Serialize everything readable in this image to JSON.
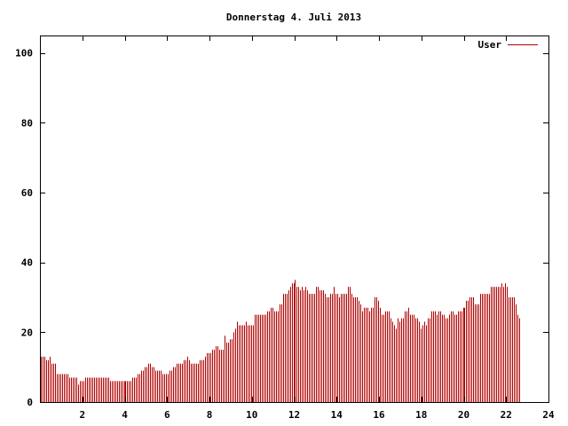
{
  "chart_data": {
    "type": "bar",
    "title": "Donnerstag 4. Juli 2013",
    "xlabel": "",
    "ylabel": "",
    "xlim": [
      0,
      24
    ],
    "ylim": [
      0,
      105
    ],
    "x_ticks": [
      2,
      4,
      6,
      8,
      10,
      12,
      14,
      16,
      18,
      20,
      22,
      24
    ],
    "x_tick_labels": [
      "2",
      "4",
      "6",
      "8",
      "10",
      "12",
      "14",
      "16",
      "18",
      "20",
      "22",
      "24"
    ],
    "y_ticks": [
      0,
      20,
      40,
      60,
      80,
      100
    ],
    "y_tick_labels": [
      "0",
      "20",
      "40",
      "60",
      "80",
      "100"
    ],
    "grid": false,
    "legend_position": "top-right",
    "bar_color": "#b00000",
    "series": [
      {
        "name": "User",
        "interval_minutes": 5,
        "values": [
          13,
          13,
          13,
          12,
          12,
          13,
          11,
          11,
          11,
          8,
          8,
          8,
          8,
          8,
          8,
          8,
          7,
          7,
          7,
          7,
          7,
          5,
          6,
          6,
          6,
          7,
          7,
          7,
          7,
          7,
          7,
          7,
          7,
          7,
          7,
          7,
          7,
          7,
          7,
          6,
          6,
          6,
          6,
          6,
          6,
          6,
          6,
          6,
          6,
          6,
          6,
          6,
          7,
          7,
          7,
          8,
          8,
          9,
          9,
          10,
          10,
          11,
          11,
          10,
          10,
          9,
          9,
          9,
          9,
          8,
          8,
          8,
          8,
          9,
          9,
          10,
          10,
          11,
          11,
          11,
          11,
          12,
          12,
          13,
          12,
          11,
          11,
          11,
          11,
          11,
          12,
          12,
          12,
          13,
          14,
          14,
          14,
          15,
          15,
          16,
          16,
          15,
          15,
          15,
          19,
          17,
          17,
          18,
          18,
          20,
          21,
          23,
          22,
          22,
          22,
          22,
          23,
          22,
          22,
          22,
          22,
          25,
          25,
          25,
          25,
          25,
          25,
          25,
          26,
          26,
          27,
          27,
          26,
          26,
          26,
          28,
          28,
          31,
          31,
          31,
          32,
          33,
          34,
          34,
          35,
          33,
          33,
          32,
          33,
          32,
          33,
          32,
          31,
          31,
          31,
          31,
          33,
          33,
          32,
          32,
          32,
          31,
          30,
          30,
          31,
          31,
          33,
          31,
          31,
          30,
          31,
          31,
          31,
          31,
          33,
          33,
          31,
          30,
          30,
          30,
          29,
          28,
          26,
          27,
          27,
          27,
          26,
          27,
          27,
          30,
          30,
          29,
          27,
          25,
          25,
          26,
          26,
          26,
          24,
          23,
          22,
          21,
          24,
          23,
          24,
          24,
          26,
          26,
          27,
          25,
          25,
          25,
          24,
          24,
          23,
          21,
          22,
          23,
          22,
          24,
          24,
          26,
          26,
          26,
          25,
          26,
          26,
          25,
          25,
          24,
          24,
          25,
          26,
          26,
          25,
          25,
          26,
          26,
          26,
          27,
          27,
          29,
          29,
          30,
          30,
          30,
          28,
          28,
          28,
          31,
          31,
          31,
          31,
          31,
          31,
          33,
          33,
          33,
          33,
          33,
          33,
          34,
          33,
          34,
          33,
          30,
          30,
          30,
          30,
          28,
          25,
          24
        ]
      }
    ]
  }
}
